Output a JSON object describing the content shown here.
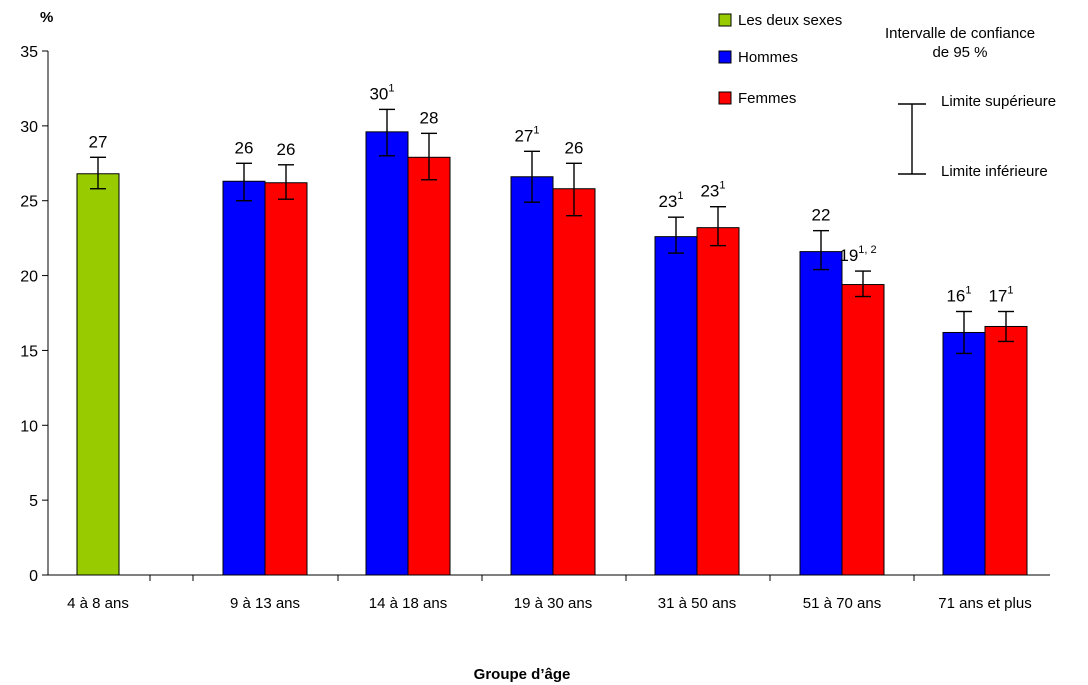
{
  "chart_data": {
    "type": "bar",
    "ylabel": "%",
    "xlabel": "Groupe d’âge",
    "ylim": [
      0,
      35
    ],
    "yticks": [
      0,
      5,
      10,
      15,
      20,
      25,
      30,
      35
    ],
    "grid": false,
    "categories": [
      "4 à 8 ans",
      "9 à 13 ans",
      "14 à 18 ans",
      "19 à 30 ans",
      "31 à 50 ans",
      "51 à 70 ans",
      "71 ans et plus"
    ],
    "series": [
      {
        "name": "Les deux sexes",
        "color": "#99cc00",
        "values": [
          26.8,
          null,
          null,
          null,
          null,
          null,
          null
        ],
        "ci_low": [
          25.8,
          null,
          null,
          null,
          null,
          null,
          null
        ],
        "ci_high": [
          27.9,
          null,
          null,
          null,
          null,
          null,
          null
        ],
        "labels": [
          "27",
          null,
          null,
          null,
          null,
          null,
          null
        ],
        "notes": [
          "",
          null,
          null,
          null,
          null,
          null,
          null
        ]
      },
      {
        "name": "Hommes",
        "color": "#0000ff",
        "values": [
          null,
          26.3,
          29.6,
          26.6,
          22.6,
          21.6,
          16.2
        ],
        "ci_low": [
          null,
          25.0,
          28.0,
          24.9,
          21.5,
          20.4,
          14.8
        ],
        "ci_high": [
          null,
          27.5,
          31.1,
          28.3,
          23.9,
          23.0,
          17.6
        ],
        "labels": [
          null,
          "26",
          "30",
          "27",
          "23",
          "22",
          "16"
        ],
        "notes": [
          null,
          "",
          "1",
          "1",
          "1",
          "",
          "1"
        ]
      },
      {
        "name": "Femmes",
        "color": "#ff0000",
        "values": [
          null,
          26.2,
          27.9,
          25.8,
          23.2,
          19.4,
          16.6
        ],
        "ci_low": [
          null,
          25.1,
          26.4,
          24.0,
          22.0,
          18.6,
          15.6
        ],
        "ci_high": [
          null,
          27.4,
          29.5,
          27.5,
          24.6,
          20.3,
          17.6
        ],
        "labels": [
          null,
          "26",
          "28",
          "26",
          "23",
          "19",
          "17"
        ],
        "notes": [
          null,
          "",
          "",
          "",
          "1",
          "1, 2",
          "1"
        ]
      }
    ],
    "legend_position": "top-right",
    "ci_legend": {
      "title_line1": "Intervalle de confiance",
      "title_line2": "de 95 %",
      "upper": "Limite supérieure",
      "lower": "Limite inférieure"
    }
  }
}
